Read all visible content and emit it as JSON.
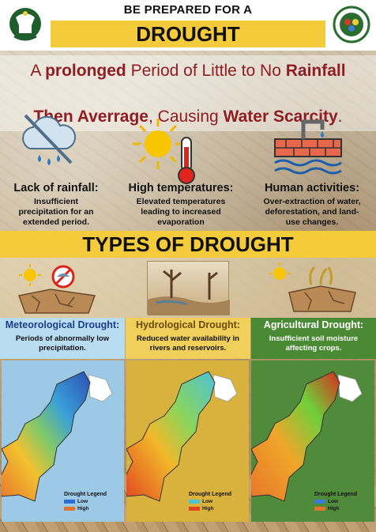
{
  "header": {
    "top_title": "BE PREPARED FOR A",
    "main_title": "DROUGHT",
    "left_logo": "government-emblem-icon",
    "right_logo": "agency-seal-icon"
  },
  "definition": {
    "line1": {
      "p1": "A ",
      "b1": "prolonged",
      "p2": " Period of Little to No ",
      "b2": "Rainfall"
    },
    "line2": {
      "b1": "Then Averrage",
      "p1": ", Causing ",
      "b2": "Water Scarcity",
      "p2": "."
    }
  },
  "causes": [
    {
      "title": "Lack of rainfall:",
      "desc": [
        "Insufficient",
        "precipitation for an",
        "extended period."
      ],
      "icon": "no-rain-cloud-icon"
    },
    {
      "title": "High temperatures:",
      "desc": [
        "Elevated temperatures",
        "leading to increased",
        "evaporation"
      ],
      "icon": "sun-thermometer-icon"
    },
    {
      "title": "Human activities:",
      "desc": [
        "Over-extraction of water,",
        "deforestation, and land-",
        "use changes."
      ],
      "icon": "water-pipe-icon"
    }
  ],
  "types_heading": "TYPES OF DROUGHT",
  "types": [
    {
      "title": "Meteorological Drought:",
      "desc": [
        "Periods of abnormally low",
        "precipitation."
      ],
      "title_color": "#1a3f8a",
      "panel_bg": "#9cc9e6"
    },
    {
      "title": "Hydrological Drought:",
      "desc": [
        "Reduced water availability in",
        "rivers and reservoirs."
      ],
      "title_color": "#6b4a08",
      "panel_bg": "#d9b23e"
    },
    {
      "title": "Agricultural Drought:",
      "desc": [
        "Insufficient soil moisture",
        "affecting crops."
      ],
      "title_color": "#ffffff",
      "panel_bg": "#4f8b3a"
    }
  ],
  "legend": {
    "title": "Drought Legend",
    "low": "Low",
    "high": "High"
  },
  "colors": {
    "accent_yellow": "#f3cb3b",
    "title_red": "#8f1d22",
    "met_header_bg": "#b8dcf2",
    "hyd_header_bg": "#f0d05a",
    "agr_header_bg": "#4a8a34"
  }
}
